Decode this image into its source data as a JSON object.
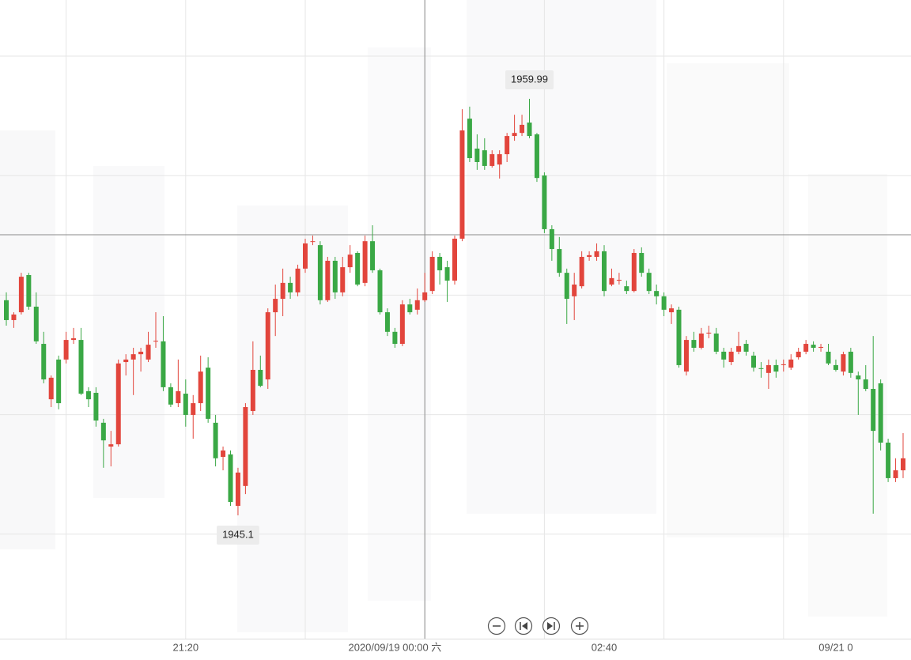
{
  "chart_data": {
    "type": "candlestick",
    "up_color": "#e2453c",
    "down_color": "#3aa845",
    "high_label": 1959.99,
    "low_label": 1945.1,
    "crosshair": {
      "index": 56,
      "price": 1955.13
    },
    "categories": [
      null,
      null,
      null,
      null,
      null,
      null,
      null,
      null,
      null,
      null,
      null,
      null,
      null,
      null,
      null,
      null,
      null,
      null,
      null,
      null,
      null,
      null,
      null,
      null,
      "21:20",
      null,
      null,
      null,
      null,
      null,
      null,
      null,
      null,
      null,
      null,
      null,
      null,
      null,
      null,
      null,
      null,
      null,
      null,
      null,
      null,
      null,
      null,
      null,
      null,
      null,
      null,
      null,
      "2020/09/19 00:00 六",
      null,
      null,
      null,
      null,
      null,
      null,
      null,
      null,
      null,
      null,
      null,
      null,
      null,
      null,
      null,
      null,
      null,
      null,
      null,
      null,
      null,
      null,
      null,
      null,
      null,
      null,
      null,
      "02:40",
      null,
      null,
      null,
      null,
      null,
      null,
      null,
      null,
      null,
      null,
      null,
      null,
      null,
      null,
      null,
      null,
      null,
      null,
      null,
      null,
      null,
      null,
      null,
      null,
      null,
      null,
      null,
      null,
      null,
      null,
      "09/21 0",
      null
    ],
    "ohlc": [
      [
        1952.79,
        1953.07,
        1951.88,
        1952.08
      ],
      [
        1952.08,
        1952.36,
        1951.8,
        1952.28
      ],
      [
        1952.36,
        1953.77,
        1952.28,
        1953.63
      ],
      [
        1953.69,
        1953.77,
        1952.45,
        1952.56
      ],
      [
        1952.56,
        1953.07,
        1951.23,
        1951.32
      ],
      [
        1951.23,
        1951.66,
        1949.82,
        1949.96
      ],
      [
        1949.25,
        1950.1,
        1948.97,
        1950.02
      ],
      [
        1950.67,
        1950.81,
        1948.89,
        1949.11
      ],
      [
        1950.67,
        1951.66,
        1950.53,
        1951.37
      ],
      [
        1951.37,
        1951.8,
        1951.23,
        1951.43
      ],
      [
        1951.37,
        1951.8,
        1949.4,
        1949.45
      ],
      [
        1949.54,
        1949.68,
        1948.97,
        1949.25
      ],
      [
        1949.48,
        1949.68,
        1948.27,
        1948.49
      ],
      [
        1948.41,
        1948.55,
        1946.8,
        1947.78
      ],
      [
        1947.56,
        1948.12,
        1946.85,
        1947.64
      ],
      [
        1947.64,
        1950.67,
        1947.56,
        1950.53
      ],
      [
        1950.58,
        1950.86,
        1950.1,
        1950.67
      ],
      [
        1950.67,
        1951.09,
        1949.4,
        1950.86
      ],
      [
        1950.86,
        1951.09,
        1950.24,
        1950.95
      ],
      [
        1950.67,
        1951.66,
        1950.58,
        1951.2
      ],
      [
        1951.32,
        1952.36,
        1951.09,
        1951.34
      ],
      [
        1951.32,
        1952.22,
        1949.54,
        1949.68
      ],
      [
        1949.68,
        1949.82,
        1948.97,
        1949.06
      ],
      [
        1949.11,
        1950.67,
        1948.97,
        1949.54
      ],
      [
        1949.45,
        1949.96,
        1948.27,
        1948.69
      ],
      [
        1948.69,
        1949.4,
        1947.84,
        1949.11
      ],
      [
        1949.11,
        1950.81,
        1948.83,
        1950.24
      ],
      [
        1950.38,
        1950.75,
        1948.41,
        1948.55
      ],
      [
        1948.41,
        1948.69,
        1946.85,
        1947.14
      ],
      [
        1947.19,
        1947.56,
        1946.71,
        1947.42
      ],
      [
        1947.28,
        1947.42,
        1945.44,
        1945.58
      ],
      [
        1945.44,
        1946.8,
        1945.1,
        1946.63
      ],
      [
        1946.15,
        1949.11,
        1945.86,
        1948.97
      ],
      [
        1948.83,
        1951.32,
        1948.69,
        1950.3
      ],
      [
        1950.3,
        1950.81,
        1949.68,
        1949.73
      ],
      [
        1949.96,
        1952.5,
        1949.62,
        1952.36
      ],
      [
        1952.36,
        1953.35,
        1951.51,
        1952.84
      ],
      [
        1952.84,
        1953.92,
        1952.22,
        1953.41
      ],
      [
        1953.41,
        1953.63,
        1952.84,
        1953.07
      ],
      [
        1953.07,
        1954.06,
        1952.93,
        1953.92
      ],
      [
        1953.92,
        1954.99,
        1953.77,
        1954.82
      ],
      [
        1954.88,
        1955.1,
        1954.76,
        1954.9
      ],
      [
        1954.76,
        1954.9,
        1952.64,
        1952.79
      ],
      [
        1952.79,
        1954.34,
        1952.73,
        1954.2
      ],
      [
        1954.2,
        1954.34,
        1952.84,
        1953.07
      ],
      [
        1953.07,
        1954.34,
        1952.93,
        1953.97
      ],
      [
        1953.97,
        1954.76,
        1953.77,
        1954.42
      ],
      [
        1954.48,
        1954.54,
        1953.29,
        1953.35
      ],
      [
        1953.41,
        1955.1,
        1953.29,
        1954.9
      ],
      [
        1954.9,
        1955.47,
        1953.77,
        1953.86
      ],
      [
        1953.86,
        1953.92,
        1952.28,
        1952.36
      ],
      [
        1952.36,
        1952.5,
        1951.51,
        1951.66
      ],
      [
        1951.66,
        1951.8,
        1951.09,
        1951.23
      ],
      [
        1951.23,
        1952.79,
        1951.15,
        1952.64
      ],
      [
        1952.64,
        1952.84,
        1952.28,
        1952.36
      ],
      [
        1952.45,
        1953.21,
        1952.28,
        1952.79
      ],
      [
        1952.79,
        1953.77,
        1952.73,
        1953.07
      ],
      [
        1953.12,
        1954.54,
        1953.01,
        1954.34
      ],
      [
        1954.34,
        1954.48,
        1953.35,
        1953.86
      ],
      [
        1953.97,
        1954.2,
        1952.73,
        1953.49
      ],
      [
        1953.49,
        1955.1,
        1953.35,
        1954.99
      ],
      [
        1954.99,
        1959.62,
        1954.9,
        1958.86
      ],
      [
        1959.28,
        1959.71,
        1957.73,
        1957.87
      ],
      [
        1958.21,
        1958.72,
        1957.45,
        1957.73
      ],
      [
        1958.15,
        1958.58,
        1957.45,
        1957.59
      ],
      [
        1957.59,
        1958.15,
        1957.53,
        1958.01
      ],
      [
        1957.64,
        1958.15,
        1957.14,
        1958.01
      ],
      [
        1958.01,
        1958.77,
        1957.73,
        1958.66
      ],
      [
        1958.66,
        1959.42,
        1958.49,
        1958.77
      ],
      [
        1958.77,
        1959.42,
        1958.66,
        1959.06
      ],
      [
        1959.14,
        1959.99,
        1958.58,
        1958.66
      ],
      [
        1958.72,
        1958.77,
        1957.02,
        1957.16
      ],
      [
        1957.25,
        1957.36,
        1955.19,
        1955.33
      ],
      [
        1955.33,
        1955.47,
        1954.2,
        1954.62
      ],
      [
        1954.62,
        1955.05,
        1953.63,
        1953.77
      ],
      [
        1953.77,
        1953.92,
        1951.94,
        1952.84
      ],
      [
        1952.93,
        1953.77,
        1952.08,
        1953.35
      ],
      [
        1953.29,
        1954.54,
        1953.21,
        1954.34
      ],
      [
        1954.34,
        1954.54,
        1954.2,
        1954.4
      ],
      [
        1954.34,
        1954.82,
        1954.2,
        1954.54
      ],
      [
        1954.54,
        1954.76,
        1952.93,
        1953.12
      ],
      [
        1953.35,
        1953.92,
        1953.29,
        1953.58
      ],
      [
        1953.49,
        1953.77,
        1953.35,
        1953.52
      ],
      [
        1953.29,
        1953.49,
        1953.01,
        1953.12
      ],
      [
        1953.12,
        1954.62,
        1953.07,
        1954.48
      ],
      [
        1954.48,
        1954.68,
        1953.63,
        1953.77
      ],
      [
        1953.77,
        1953.92,
        1953.01,
        1953.12
      ],
      [
        1953.12,
        1953.35,
        1952.64,
        1952.93
      ],
      [
        1952.93,
        1953.07,
        1952.22,
        1952.45
      ],
      [
        1952.36,
        1952.64,
        1951.94,
        1952.5
      ],
      [
        1952.45,
        1952.56,
        1950.38,
        1950.47
      ],
      [
        1950.24,
        1951.51,
        1950.1,
        1951.37
      ],
      [
        1951.37,
        1951.66,
        1950.95,
        1951.09
      ],
      [
        1951.09,
        1951.8,
        1951.03,
        1951.6
      ],
      [
        1951.6,
        1951.88,
        1951.43,
        1951.63
      ],
      [
        1951.6,
        1951.8,
        1950.86,
        1950.95
      ],
      [
        1950.95,
        1951.09,
        1950.38,
        1950.67
      ],
      [
        1950.58,
        1951.09,
        1950.47,
        1950.95
      ],
      [
        1950.95,
        1951.66,
        1950.86,
        1951.15
      ],
      [
        1951.23,
        1951.37,
        1950.81,
        1950.95
      ],
      [
        1950.81,
        1950.95,
        1950.24,
        1950.38
      ],
      [
        1950.36,
        1950.58,
        1950.02,
        1950.33
      ],
      [
        1950.19,
        1950.67,
        1949.62,
        1950.47
      ],
      [
        1950.47,
        1950.67,
        1950.02,
        1950.24
      ],
      [
        1950.47,
        1950.67,
        1950.24,
        1950.5
      ],
      [
        1950.38,
        1950.86,
        1950.3,
        1950.67
      ],
      [
        1950.75,
        1951.09,
        1950.67,
        1950.95
      ],
      [
        1950.95,
        1951.37,
        1950.86,
        1951.23
      ],
      [
        1951.2,
        1951.32,
        1950.95,
        1951.09
      ],
      [
        1951.09,
        1951.23,
        1950.95,
        1951.12
      ],
      [
        1950.95,
        1951.23,
        1950.47,
        1950.53
      ],
      [
        1950.47,
        1950.67,
        1950.24,
        1950.3
      ],
      [
        1950.24,
        1950.95,
        1950.1,
        1950.86
      ],
      [
        1950.95,
        1951.09,
        1950.02,
        1950.19
      ],
      [
        1950.1,
        1950.24,
        1948.69,
        1949.96
      ],
      [
        1949.96,
        1950.47,
        1949.54,
        1949.62
      ],
      [
        1949.62,
        1951.51,
        1945.16,
        1948.12
      ],
      [
        1949.82,
        1949.96,
        1947.42,
        1947.7
      ],
      [
        1947.7,
        1947.84,
        1946.29,
        1946.43
      ],
      [
        1946.43,
        1947.14,
        1946.29,
        1946.71
      ],
      [
        1946.71,
        1948.04,
        1946.43,
        1947.14
      ]
    ]
  }
}
